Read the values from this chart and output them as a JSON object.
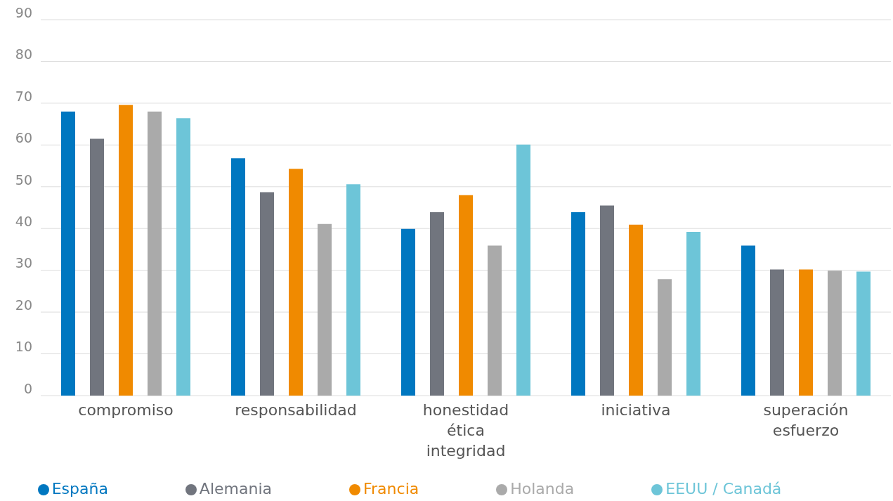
{
  "chart_data": {
    "type": "bar",
    "categories": [
      "compromiso",
      "responsabilidad",
      "honestidad\nética\nintegridad",
      "iniciativa",
      "superación\nesfuerzo"
    ],
    "series": [
      {
        "name": "España",
        "color": "#0077c0",
        "values": [
          68,
          56.8,
          39.9,
          43.9,
          35.9
        ]
      },
      {
        "name": "Alemania",
        "color": "#71757e",
        "values": [
          61.5,
          48.7,
          43.9,
          45.5,
          30.2
        ]
      },
      {
        "name": "Francia",
        "color": "#f08a00",
        "values": [
          69.6,
          54.3,
          48,
          40.9,
          30.2
        ]
      },
      {
        "name": "Holanda",
        "color": "#aaaaaa",
        "values": [
          68,
          41.1,
          35.9,
          27.9,
          29.9
        ]
      },
      {
        "name": "EEUU / Canadá",
        "color": "#6dc5d8",
        "values": [
          66.4,
          50.6,
          60.1,
          39.2,
          29.7
        ]
      }
    ],
    "ylim": [
      0,
      90
    ],
    "yticks": [
      0,
      10,
      20,
      30,
      40,
      50,
      60,
      70,
      80,
      90
    ],
    "grid": "y",
    "legend": "bottom"
  }
}
